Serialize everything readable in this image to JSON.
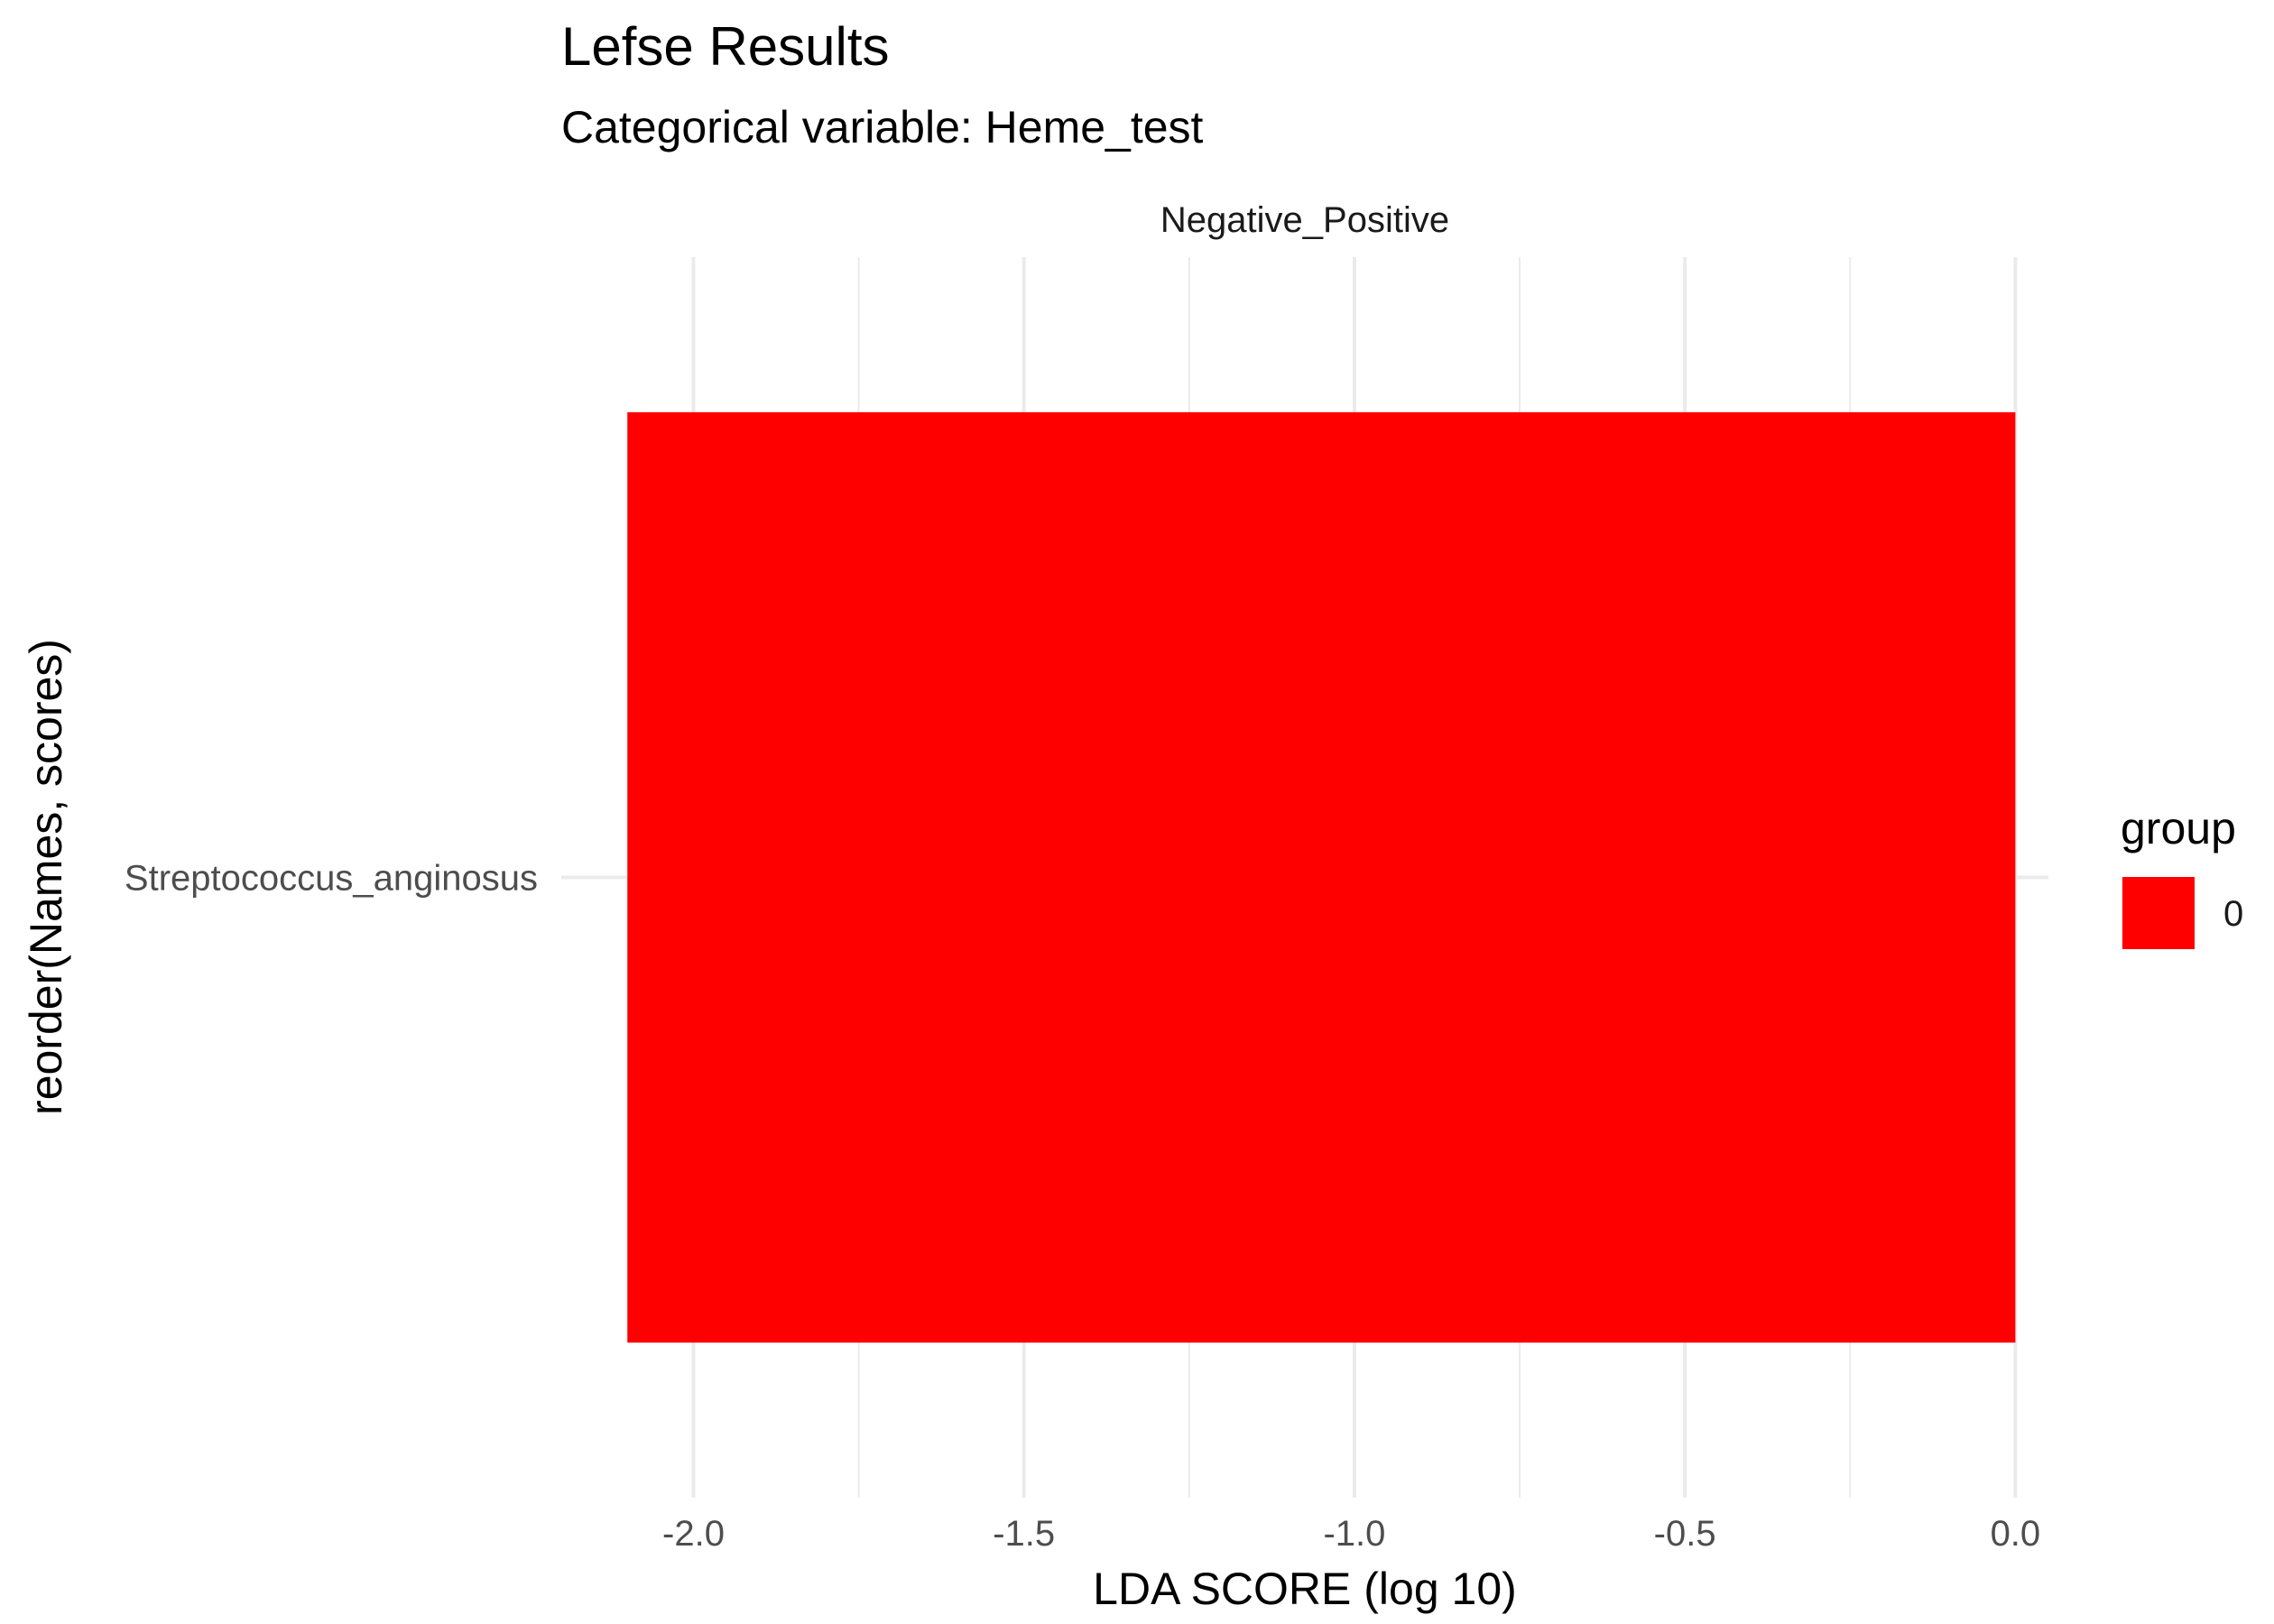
{
  "chart_data": {
    "type": "bar",
    "orientation": "horizontal",
    "title": "Lefse Results",
    "subtitle": "Categorical variable: Heme_test",
    "facet_label": "Negative_Positive",
    "xlabel": "LDA SCORE (log 10)",
    "ylabel": "reorder(Names, scores)",
    "categories": [
      "Streptococcus_anginosus"
    ],
    "series": [
      {
        "name": "0",
        "values": [
          -2.1
        ],
        "color": "#ff0000"
      }
    ],
    "xlim": [
      -2.2,
      0.05
    ],
    "x_ticks": [
      -2.0,
      -1.5,
      -1.0,
      -0.5,
      0.0
    ],
    "x_tick_labels": [
      "-2.0",
      "-1.5",
      "-1.0",
      "-0.5",
      "0.0"
    ],
    "grid": true,
    "grid_color": "#ebebeb",
    "legend": {
      "title": "group",
      "placement": "right",
      "entries": [
        {
          "label": "0",
          "color": "#ff0000"
        }
      ]
    }
  }
}
